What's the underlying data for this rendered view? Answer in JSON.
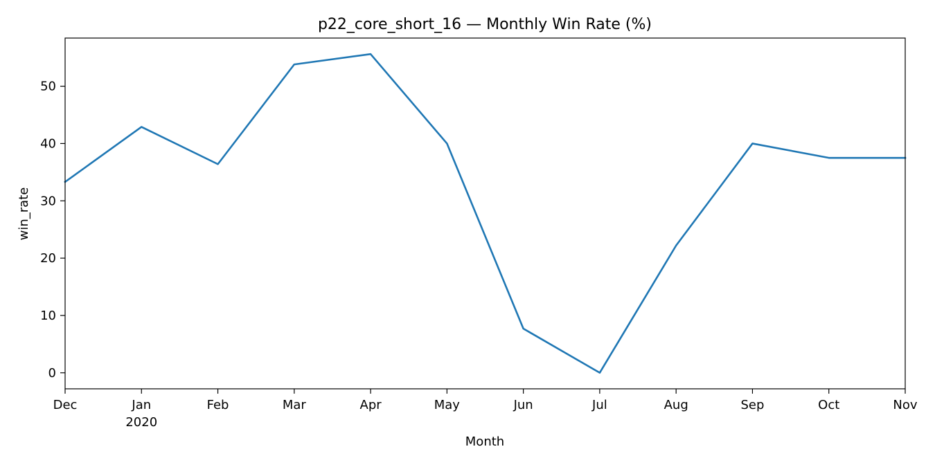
{
  "chart_data": {
    "type": "line",
    "title": "p22_core_short_16 — Monthly Win Rate (%)",
    "xlabel": "Month",
    "ylabel": "win_rate",
    "x": [
      "2019-12",
      "2020-01",
      "2020-02",
      "2020-03",
      "2020-04",
      "2020-05",
      "2020-06",
      "2020-07",
      "2020-08",
      "2020-09",
      "2020-10",
      "2020-11"
    ],
    "x_tick_labels": [
      {
        "label": "Dec",
        "sublabel": ""
      },
      {
        "label": "Jan",
        "sublabel": "2020"
      },
      {
        "label": "Feb",
        "sublabel": ""
      },
      {
        "label": "Mar",
        "sublabel": ""
      },
      {
        "label": "Apr",
        "sublabel": ""
      },
      {
        "label": "May",
        "sublabel": ""
      },
      {
        "label": "Jun",
        "sublabel": ""
      },
      {
        "label": "Jul",
        "sublabel": ""
      },
      {
        "label": "Aug",
        "sublabel": ""
      },
      {
        "label": "Sep",
        "sublabel": ""
      },
      {
        "label": "Oct",
        "sublabel": ""
      },
      {
        "label": "Nov",
        "sublabel": ""
      }
    ],
    "series": [
      {
        "values": [
          33.3,
          42.9,
          36.4,
          53.8,
          55.6,
          40.0,
          7.7,
          0.0,
          22.2,
          40.0,
          37.5,
          37.5
        ],
        "color": "#1f77b4"
      }
    ],
    "yticks": [
      0,
      10,
      20,
      30,
      40,
      50
    ],
    "ylim": [
      -2.8,
      58.4
    ],
    "grid": false,
    "legend": false
  }
}
